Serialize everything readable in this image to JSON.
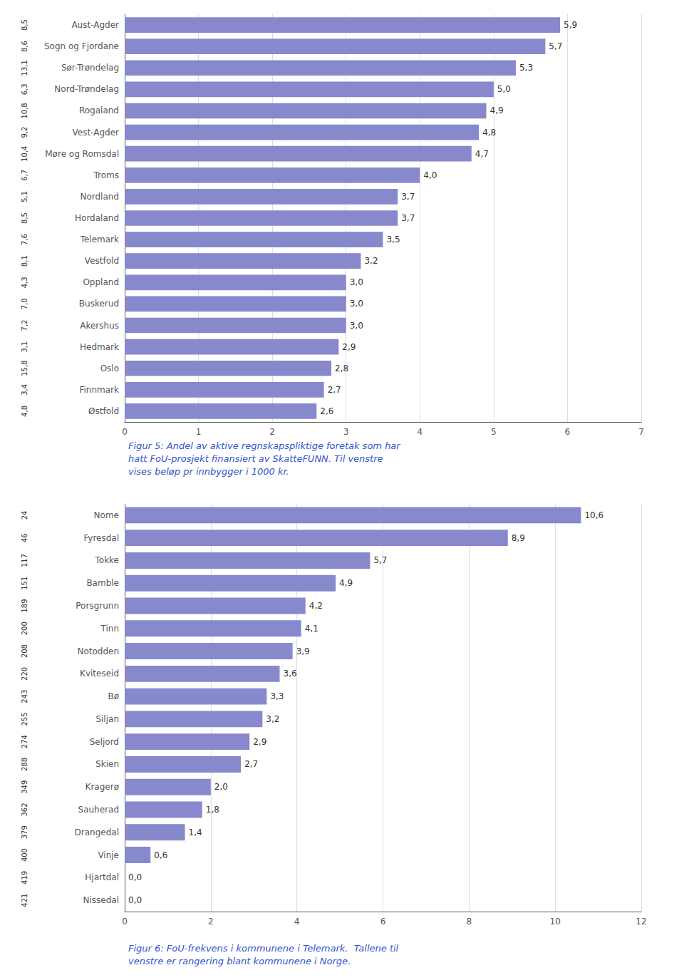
{
  "chart_data": [
    {
      "type": "bar",
      "orientation": "horizontal",
      "title": "Figur 5: Andel av aktive regnskapspliktige foretak som har\nhatt FoU-prosjekt finansiert av SkatteFUNN. Til venstre\nvises beløp pr innbygger i 1000 kr.",
      "categories": [
        "Aust-Agder",
        "Sogn og Fjordane",
        "Sør-Trøndelag",
        "Nord-Trøndelag",
        "Rogaland",
        "Vest-Agder",
        "Møre og Romsdal",
        "Troms",
        "Nordland",
        "Hordaland",
        "Telemark",
        "Vestfold",
        "Oppland",
        "Buskerud",
        "Akershus",
        "Hedmark",
        "Oslo",
        "Finnmark",
        "Østfold"
      ],
      "values": [
        5.9,
        5.7,
        5.3,
        5.0,
        4.9,
        4.8,
        4.7,
        4.0,
        3.7,
        3.7,
        3.5,
        3.2,
        3.0,
        3.0,
        3.0,
        2.9,
        2.8,
        2.7,
        2.6
      ],
      "value_labels": [
        "5,9",
        "5,7",
        "5,3",
        "5,0",
        "4,9",
        "4,8",
        "4,7",
        "4,0",
        "3,7",
        "3,7",
        "3,5",
        "3,2",
        "3,0",
        "3,0",
        "3,0",
        "2,9",
        "2,8",
        "2,7",
        "2,6"
      ],
      "annotations": [
        "8,5",
        "8,6",
        "13,1",
        "6,3",
        "10,8",
        "9,2",
        "10,4",
        "6,7",
        "5,1",
        "8,5",
        "7,6",
        "8,1",
        "4,3",
        "7,0",
        "7,2",
        "3,1",
        "15,8",
        "3,4",
        "4,8"
      ],
      "color": "#8888cc",
      "xlim": [
        0,
        7
      ],
      "xticks": [
        0,
        1,
        2,
        3,
        4,
        5,
        6,
        7
      ],
      "grid": true,
      "data_labels": true
    },
    {
      "type": "bar",
      "orientation": "horizontal",
      "title": "Figur 6: FoU-frekvens i kommunene i Telemark.  Tallene til\nvenstre er rangering blant kommunene i Norge.",
      "categories": [
        "Nome",
        "Fyresdal",
        "Tokke",
        "Bamble",
        "Porsgrunn",
        "Tinn",
        "Notodden",
        "Kviteseid",
        "Bø",
        "Siljan",
        "Seljord",
        "Skien",
        "Kragerø",
        "Sauherad",
        "Drangedal",
        "Vinje",
        "Hjartdal",
        "Nissedal"
      ],
      "values": [
        10.6,
        8.9,
        5.7,
        4.9,
        4.2,
        4.1,
        3.9,
        3.6,
        3.3,
        3.2,
        2.9,
        2.7,
        2.0,
        1.8,
        1.4,
        0.6,
        0.0,
        0.0
      ],
      "value_labels": [
        "10,6",
        "8,9",
        "5,7",
        "4,9",
        "4,2",
        "4,1",
        "3,9",
        "3,6",
        "3,3",
        "3,2",
        "2,9",
        "2,7",
        "2,0",
        "1,8",
        "1,4",
        "0,6",
        "0,0",
        "0,0"
      ],
      "annotations": [
        "24",
        "46",
        "117",
        "151",
        "189",
        "200",
        "208",
        "220",
        "243",
        "255",
        "274",
        "288",
        "349",
        "362",
        "379",
        "400",
        "419",
        "421"
      ],
      "color": "#8888cc",
      "xlim": [
        0,
        12
      ],
      "xticks": [
        0,
        2,
        4,
        6,
        8,
        10,
        12
      ],
      "grid": true,
      "data_labels": true
    }
  ]
}
